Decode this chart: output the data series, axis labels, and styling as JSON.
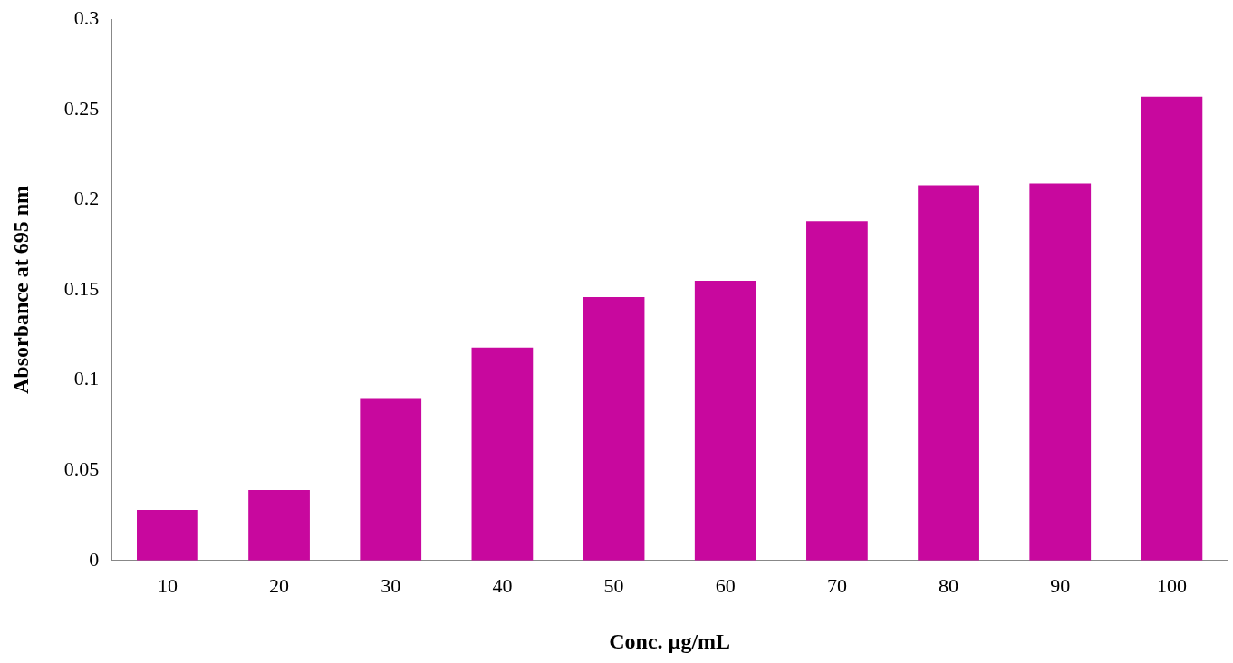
{
  "chart_data": {
    "type": "bar",
    "xlabel": "Conc. µg/mL",
    "ylabel": "Absorbance at 695 nm",
    "categories": [
      "10",
      "20",
      "30",
      "40",
      "50",
      "60",
      "70",
      "80",
      "90",
      "100"
    ],
    "values": [
      0.028,
      0.039,
      0.09,
      0.118,
      0.146,
      0.155,
      0.188,
      0.208,
      0.209,
      0.257
    ],
    "color": "#c8089e",
    "ylim": [
      0,
      0.3
    ],
    "yticks": [
      0,
      0.05,
      0.1,
      0.15,
      0.2,
      0.25,
      0.3
    ],
    "grid": false,
    "legend": false
  }
}
